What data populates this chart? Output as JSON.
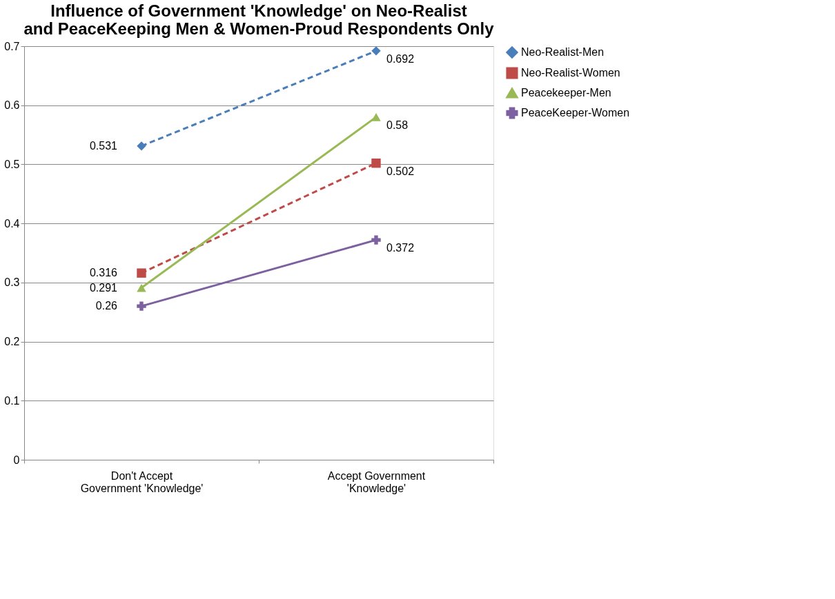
{
  "chart_data": {
    "type": "line",
    "title": "Influence of Government 'Knowledge' on Neo-Realist and PeaceKeeping Men & Women-Proud Respondents Only",
    "categories": [
      "Don't Accept Government 'Knowledge'",
      "Accept Government 'Knowledge'"
    ],
    "series": [
      {
        "name": "Neo-Realist-Men",
        "color": "#4a7ebb",
        "values": [
          0.531,
          0.692
        ],
        "marker": "diamond",
        "line_style": "dashed"
      },
      {
        "name": "Neo-Realist-Women",
        "color": "#be4b48",
        "values": [
          0.316,
          0.502
        ],
        "marker": "square",
        "line_style": "dashed"
      },
      {
        "name": "Peacekeeper-Men",
        "color": "#98b954",
        "values": [
          0.291,
          0.58
        ],
        "marker": "triangle",
        "line_style": "solid"
      },
      {
        "name": "PeaceKeeper-Women",
        "color": "#7d60a0",
        "values": [
          0.26,
          0.372
        ],
        "marker": "cross",
        "line_style": "solid"
      }
    ],
    "ylim": [
      0,
      0.7
    ],
    "yticks": [
      0,
      0.1,
      0.2,
      0.3,
      0.4,
      0.5,
      0.6,
      0.7
    ],
    "grid": "y",
    "legend": "right",
    "data_labels": true
  }
}
